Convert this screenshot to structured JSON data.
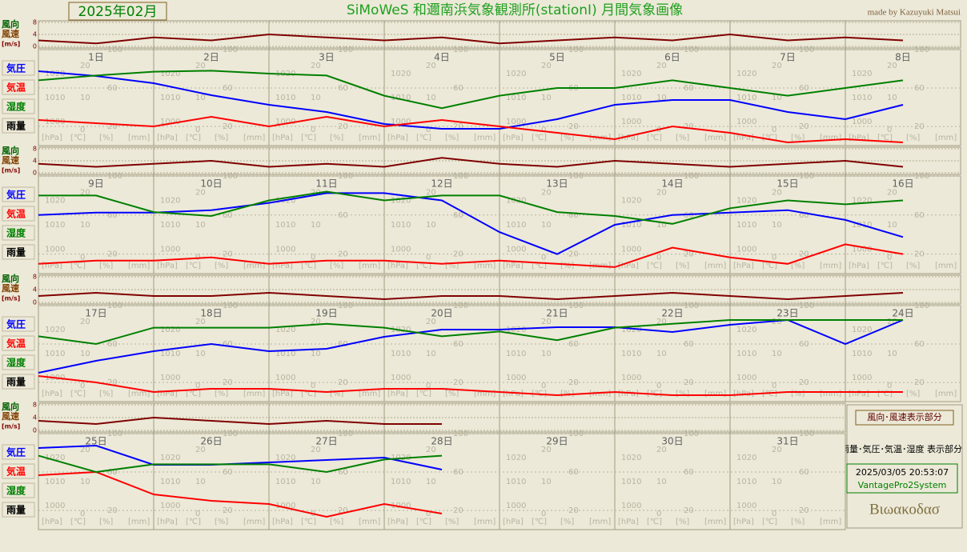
{
  "header": {
    "month": "2025年02月",
    "title": "SiMoWeS 和邇南浜気象観測所(stationI)  月間気象画像",
    "credit": "made by Kazuyuki Matsui"
  },
  "side_panel": {
    "wind_note": "風向･風速表示部分",
    "main_note": "雨量･気圧･気温･湿度 表示部分",
    "timestamp": "2025/03/05 20:53:07",
    "system": "VantagePro2System",
    "logo": "Βιωακοδασ"
  },
  "chart_data": [
    {
      "type": "line",
      "xlim": [
        1,
        9
      ],
      "xticks": [
        {
          "value": 1,
          "label": "1日"
        },
        {
          "value": 2,
          "label": "2日"
        },
        {
          "value": 3,
          "label": "3日"
        },
        {
          "value": 4,
          "label": "4日"
        },
        {
          "value": 5,
          "label": "5日"
        },
        {
          "value": 6,
          "label": "6日"
        },
        {
          "value": 7,
          "label": "7日"
        },
        {
          "value": 8,
          "label": "8日"
        }
      ],
      "x": [
        1,
        1.5,
        2,
        2.5,
        3,
        3.5,
        4,
        4.5,
        5,
        5.5,
        6,
        6.5,
        7,
        7.5,
        8,
        8.5
      ],
      "ylim": [
        0,
        100
      ],
      "yticks": [
        20,
        60,
        100
      ],
      "y2lim": [
        990,
        1030
      ],
      "y2ticks": [
        1000,
        1010,
        1020
      ],
      "y3lim": [
        -5,
        25
      ],
      "y3ticks": [
        0,
        10,
        20
      ],
      "units": [
        "[hPa]",
        "[℃]",
        "[%]",
        "[mm]"
      ],
      "rain_label": "雨量",
      "series": [
        {
          "name": "気圧",
          "color": "#0000ff",
          "axis": "y2",
          "values": [
            1021,
            1019,
            1016,
            1011,
            1007,
            1004,
            999,
            997,
            997,
            1001,
            1007,
            1009,
            1009,
            1004,
            1001,
            1007
          ]
        },
        {
          "name": "気温",
          "color": "#ff0000",
          "axis": "y3",
          "values": [
            3,
            2,
            1,
            4,
            1,
            4,
            1,
            3,
            1,
            -1,
            -3,
            1,
            -1,
            -4,
            -3,
            -4
          ]
        },
        {
          "name": "湿度",
          "color": "#008000",
          "axis": "y",
          "values": [
            68,
            73,
            77,
            78,
            75,
            73,
            52,
            39,
            52,
            60,
            60,
            68,
            60,
            52,
            60,
            68
          ]
        }
      ],
      "wind": {
        "labels": [
          "風向",
          "風速",
          "[m/s]"
        ],
        "color": "#800000",
        "ylim": [
          0,
          8
        ],
        "yticks": [
          0,
          4,
          8
        ],
        "values": [
          2,
          1,
          3,
          2,
          4,
          3,
          2,
          3,
          1,
          2,
          3,
          2,
          4,
          2,
          3,
          2
        ]
      }
    },
    {
      "type": "line",
      "xlim": [
        9,
        17
      ],
      "xticks": [
        {
          "value": 9,
          "label": "9日"
        },
        {
          "value": 10,
          "label": "10日"
        },
        {
          "value": 11,
          "label": "11日"
        },
        {
          "value": 12,
          "label": "12日"
        },
        {
          "value": 13,
          "label": "13日"
        },
        {
          "value": 14,
          "label": "14日"
        },
        {
          "value": 15,
          "label": "15日"
        },
        {
          "value": 16,
          "label": "16日"
        }
      ],
      "x": [
        9,
        9.5,
        10,
        10.5,
        11,
        11.5,
        12,
        12.5,
        13,
        13.5,
        14,
        14.5,
        15,
        15.5,
        16,
        16.5
      ],
      "ylim": [
        0,
        100
      ],
      "yticks": [
        20,
        60,
        100
      ],
      "y2lim": [
        990,
        1030
      ],
      "y2ticks": [
        1000,
        1010,
        1020
      ],
      "y3lim": [
        -5,
        25
      ],
      "y3ticks": [
        0,
        10,
        20
      ],
      "units": [
        "[hPa]",
        "[℃]",
        "[%]",
        "[mm]"
      ],
      "rain_label": "雨量",
      "series": [
        {
          "name": "気圧",
          "color": "#0000ff",
          "axis": "y2",
          "values": [
            1014,
            1015,
            1015,
            1016,
            1019,
            1023,
            1023,
            1020,
            1007,
            998,
            1010,
            1014,
            1015,
            1016,
            1012,
            1005
          ]
        },
        {
          "name": "気温",
          "color": "#ff0000",
          "axis": "y3",
          "values": [
            -2,
            -1,
            -1,
            0,
            -2,
            -1,
            -1,
            -2,
            -1,
            -2,
            -3,
            3,
            0,
            -2,
            4,
            1
          ]
        },
        {
          "name": "湿度",
          "color": "#008000",
          "axis": "y",
          "values": [
            80,
            80,
            63,
            59,
            75,
            84,
            75,
            80,
            80,
            63,
            59,
            51,
            67,
            75,
            71,
            75
          ]
        }
      ],
      "wind": {
        "labels": [
          "風向",
          "風速",
          "[m/s]"
        ],
        "color": "#800000",
        "ylim": [
          0,
          8
        ],
        "yticks": [
          0,
          4,
          8
        ],
        "values": [
          3,
          2,
          3,
          4,
          2,
          3,
          2,
          5,
          3,
          2,
          4,
          3,
          2,
          3,
          4,
          2
        ]
      }
    },
    {
      "type": "line",
      "xlim": [
        17,
        25
      ],
      "xticks": [
        {
          "value": 17,
          "label": "17日"
        },
        {
          "value": 18,
          "label": "18日"
        },
        {
          "value": 19,
          "label": "19日"
        },
        {
          "value": 20,
          "label": "20日"
        },
        {
          "value": 21,
          "label": "21日"
        },
        {
          "value": 22,
          "label": "22日"
        },
        {
          "value": 23,
          "label": "23日"
        },
        {
          "value": 24,
          "label": "24日"
        }
      ],
      "x": [
        17,
        17.5,
        18,
        18.5,
        19,
        19.5,
        20,
        20.5,
        21,
        21.5,
        22,
        22.5,
        23,
        23.5,
        24,
        24.5
      ],
      "ylim": [
        0,
        100
      ],
      "yticks": [
        20,
        60,
        100
      ],
      "y2lim": [
        990,
        1030
      ],
      "y2ticks": [
        1000,
        1010,
        1020
      ],
      "y3lim": [
        -5,
        25
      ],
      "y3ticks": [
        0,
        10,
        20
      ],
      "units": [
        "[hPa]",
        "[℃]",
        "[%]",
        "[mm]"
      ],
      "rain_label": "雨量",
      "series": [
        {
          "name": "気圧",
          "color": "#0000ff",
          "axis": "y2",
          "values": [
            1002,
            1007,
            1011,
            1014,
            1011,
            1012,
            1017,
            1020,
            1020,
            1021,
            1021,
            1019,
            1022,
            1024,
            1014,
            1024
          ]
        },
        {
          "name": "気温",
          "color": "#ff0000",
          "axis": "y3",
          "values": [
            3,
            1,
            -2,
            -1,
            -1,
            -2,
            -1,
            -1,
            -2,
            -3,
            -2,
            -3,
            -3,
            -2,
            -2,
            -2
          ]
        },
        {
          "name": "湿度",
          "color": "#008000",
          "axis": "y",
          "values": [
            68,
            60,
            77,
            77,
            77,
            81,
            77,
            68,
            73,
            64,
            77,
            81,
            85,
            85,
            85,
            85
          ]
        }
      ],
      "wind": {
        "labels": [
          "風向",
          "風速",
          "[m/s]"
        ],
        "color": "#800000",
        "ylim": [
          0,
          8
        ],
        "yticks": [
          0,
          4,
          8
        ],
        "values": [
          2,
          3,
          2,
          2,
          3,
          2,
          1,
          2,
          2,
          1,
          2,
          3,
          2,
          1,
          2,
          3
        ]
      }
    },
    {
      "type": "line",
      "xlim": [
        25,
        32
      ],
      "xticks": [
        {
          "value": 25,
          "label": "25日"
        },
        {
          "value": 26,
          "label": "26日"
        },
        {
          "value": 27,
          "label": "27日"
        },
        {
          "value": 28,
          "label": "28日"
        },
        {
          "value": 29,
          "label": "29日"
        },
        {
          "value": 30,
          "label": "30日"
        },
        {
          "value": 31,
          "label": "31日"
        }
      ],
      "x": [
        25,
        25.5,
        26,
        26.5,
        27,
        27.5,
        28,
        28.5,
        29,
        29.5,
        30,
        30.5,
        31,
        31.5
      ],
      "ylim": [
        0,
        100
      ],
      "yticks": [
        20,
        60,
        100
      ],
      "y2lim": [
        990,
        1030
      ],
      "y2ticks": [
        1000,
        1010,
        1020
      ],
      "y3lim": [
        -5,
        25
      ],
      "y3ticks": [
        0,
        10,
        20
      ],
      "units": [
        "[hPa]",
        "[℃]",
        "[%]",
        "[mm]"
      ],
      "rain_label": "雨量",
      "series": [
        {
          "name": "気圧",
          "color": "#0000ff",
          "axis": "y2",
          "values": [
            1024,
            1025,
            1017,
            1017,
            1018,
            1019,
            1020,
            1015,
            null,
            null,
            null,
            null,
            null,
            null
          ]
        },
        {
          "name": "気温",
          "color": "#ff0000",
          "axis": "y3",
          "values": [
            12,
            13,
            6,
            4,
            3,
            -1,
            3,
            0,
            null,
            null,
            null,
            null,
            null,
            null
          ]
        },
        {
          "name": "湿度",
          "color": "#008000",
          "axis": "y",
          "values": [
            77,
            60,
            68,
            68,
            68,
            60,
            73,
            77,
            null,
            null,
            null,
            null,
            null,
            null
          ]
        }
      ],
      "wind": {
        "labels": [
          "風向",
          "風速",
          "[m/s]"
        ],
        "color": "#800000",
        "ylim": [
          0,
          8
        ],
        "yticks": [
          0,
          4,
          8
        ],
        "values": [
          3,
          2,
          4,
          3,
          2,
          3,
          2,
          2,
          null,
          null,
          null,
          null,
          null,
          null
        ]
      }
    }
  ]
}
